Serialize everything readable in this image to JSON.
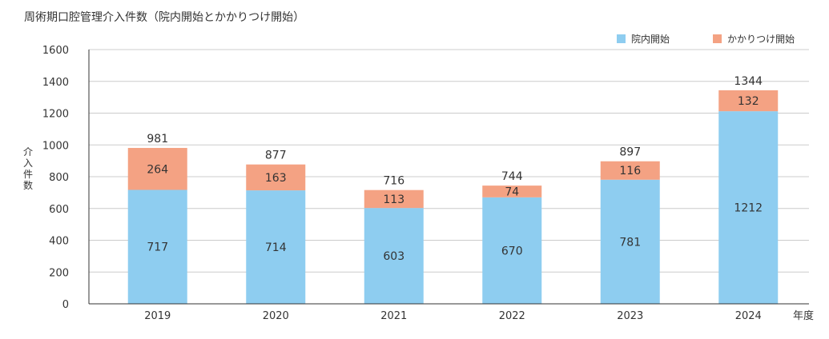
{
  "colors": {
    "inhouse": "#8ecdf0",
    "referral": "#f4a283",
    "grid": "#cccccc",
    "axis": "#333333"
  },
  "chart_data": {
    "type": "bar",
    "stacked": true,
    "title": "周術期口腔管理介入件数（院内開始とかかりつけ開始）",
    "xlabel": "年度",
    "ylabel": "介入件数",
    "ylim": [
      0,
      1600
    ],
    "yticks": [
      0,
      200,
      400,
      600,
      800,
      1000,
      1200,
      1400,
      1600
    ],
    "grid": true,
    "legend_position": "top-right",
    "categories": [
      "2019",
      "2020",
      "2021",
      "2022",
      "2023",
      "2024"
    ],
    "series": [
      {
        "name": "院内開始",
        "values": [
          717,
          714,
          603,
          670,
          781,
          1212
        ]
      },
      {
        "name": "かかりつけ開始",
        "values": [
          264,
          163,
          113,
          74,
          116,
          132
        ]
      }
    ],
    "totals": [
      981,
      877,
      716,
      744,
      897,
      1344
    ]
  }
}
